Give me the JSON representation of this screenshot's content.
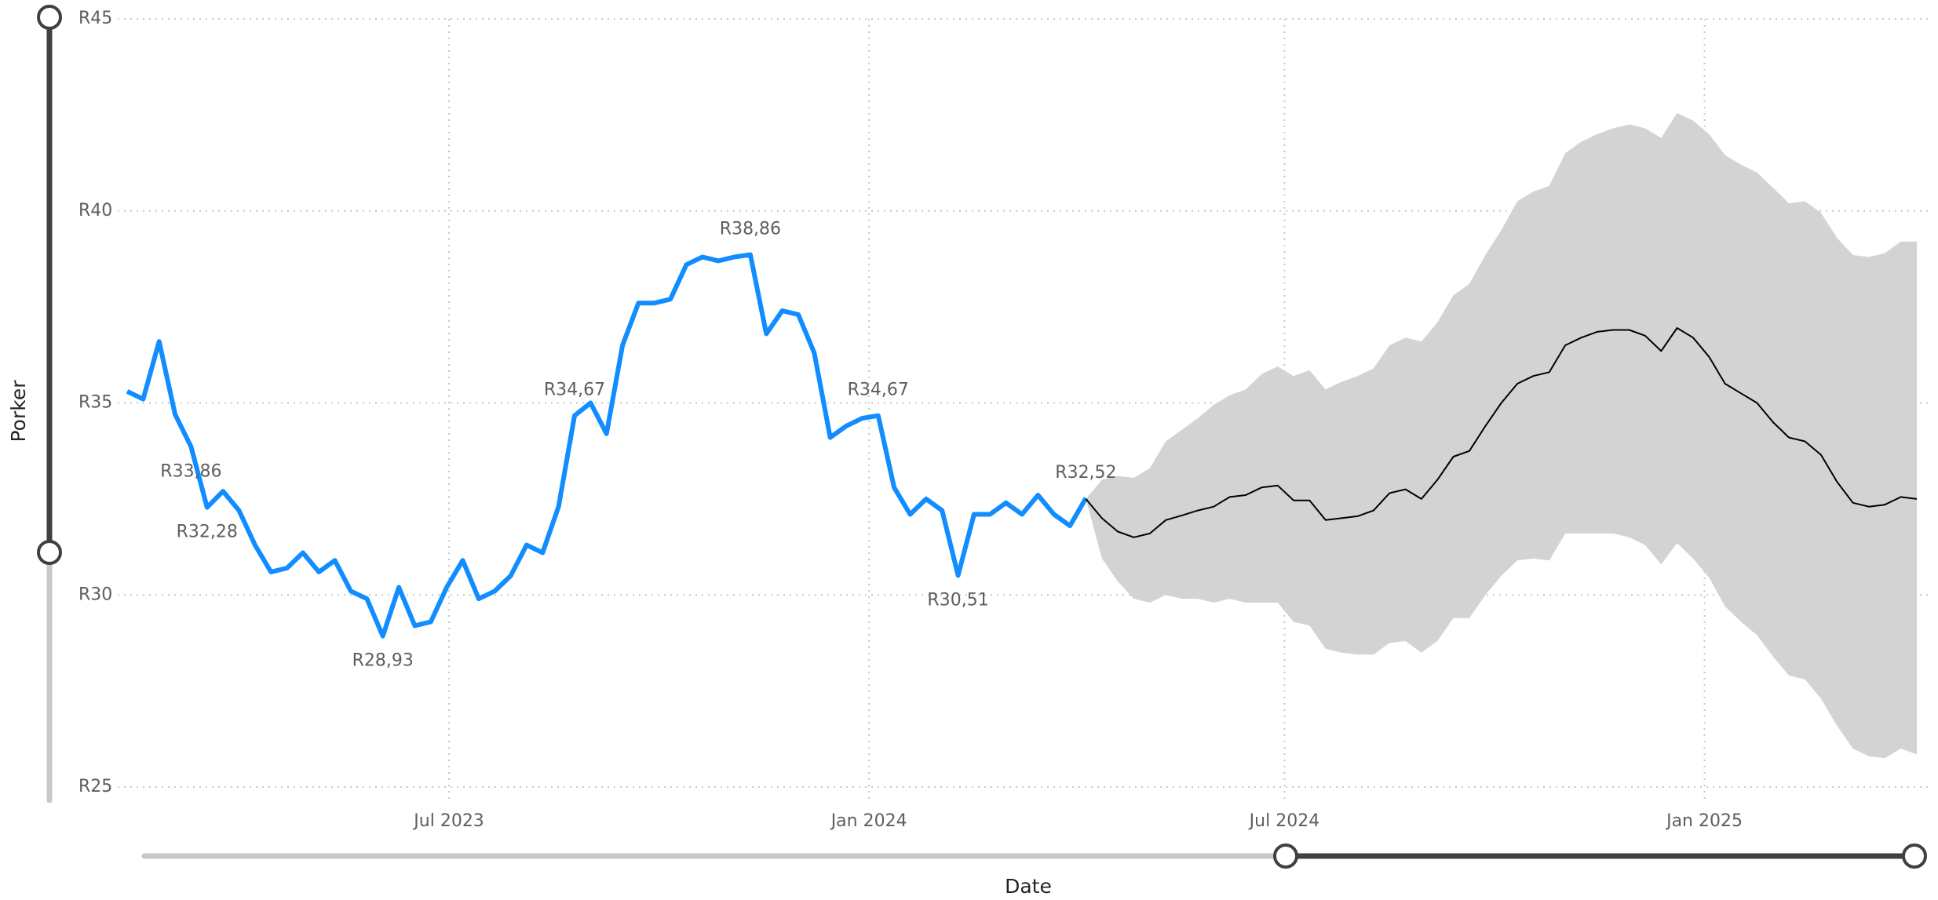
{
  "chart_data": {
    "type": "line",
    "x_label": "Date",
    "y_label": "Porker",
    "xlim": [
      "2023-02-10",
      "2025-04-04"
    ],
    "xticks": [
      {
        "value": "2023-07",
        "label": "Jul 2023"
      },
      {
        "value": "2024-01",
        "label": "Jan 2024"
      },
      {
        "value": "2024-07",
        "label": "Jul 2024"
      },
      {
        "value": "2025-01",
        "label": "Jan 2025"
      }
    ],
    "ylim": [
      25,
      45
    ],
    "yticks": [
      {
        "value": 25,
        "label": "R25"
      },
      {
        "value": 30,
        "label": "R30"
      },
      {
        "value": 35,
        "label": "R35"
      },
      {
        "value": 40,
        "label": "R40"
      },
      {
        "value": 45,
        "label": "R45"
      }
    ],
    "grid": true,
    "series": [
      {
        "color": "#118dff",
        "x": [
          "2023-02-10",
          "2023-02-17",
          "2023-02-24",
          "2023-03-03",
          "2023-03-10",
          "2023-03-17",
          "2023-03-24",
          "2023-03-31",
          "2023-04-07",
          "2023-04-14",
          "2023-04-21",
          "2023-04-28",
          "2023-05-05",
          "2023-05-12",
          "2023-05-19",
          "2023-05-26",
          "2023-06-02",
          "2023-06-09",
          "2023-06-16",
          "2023-06-23",
          "2023-06-30",
          "2023-07-07",
          "2023-07-14",
          "2023-07-21",
          "2023-07-28",
          "2023-08-04",
          "2023-08-11",
          "2023-08-18",
          "2023-08-25",
          "2023-09-01",
          "2023-09-08",
          "2023-09-15",
          "2023-09-22",
          "2023-09-29",
          "2023-10-06",
          "2023-10-13",
          "2023-10-20",
          "2023-10-27",
          "2023-11-03",
          "2023-11-10",
          "2023-11-17",
          "2023-11-24",
          "2023-12-01",
          "2023-12-08",
          "2023-12-15",
          "2023-12-22",
          "2023-12-29",
          "2024-01-05",
          "2024-01-12",
          "2024-01-19",
          "2024-01-26",
          "2024-02-02",
          "2024-02-09",
          "2024-02-16",
          "2024-02-23",
          "2024-03-01",
          "2024-03-08",
          "2024-03-15",
          "2024-03-22",
          "2024-03-29",
          "2024-04-05"
        ],
        "values": [
          35.3,
          35.1,
          36.6,
          34.7,
          33.86,
          32.28,
          32.7,
          32.2,
          31.3,
          30.6,
          30.7,
          31.1,
          30.6,
          30.9,
          30.1,
          29.9,
          28.93,
          30.2,
          29.2,
          29.3,
          30.2,
          30.9,
          29.9,
          30.1,
          30.5,
          31.3,
          31.1,
          32.3,
          34.67,
          35.0,
          34.2,
          36.5,
          37.6,
          37.6,
          37.7,
          38.6,
          38.8,
          38.7,
          38.8,
          38.86,
          36.8,
          37.4,
          37.3,
          36.3,
          34.1,
          34.4,
          34.6,
          34.67,
          32.8,
          32.1,
          32.5,
          32.2,
          30.51,
          32.1,
          32.1,
          32.4,
          32.1,
          32.6,
          32.1,
          31.8,
          32.52
        ],
        "value_labels": [
          null,
          null,
          null,
          null,
          "R33,86",
          "R32,28",
          null,
          null,
          null,
          null,
          null,
          null,
          null,
          null,
          null,
          null,
          "R28,93",
          null,
          null,
          null,
          null,
          null,
          null,
          null,
          null,
          null,
          null,
          null,
          "R34,67",
          null,
          null,
          null,
          null,
          null,
          null,
          null,
          null,
          null,
          null,
          "R38,86",
          null,
          null,
          null,
          null,
          null,
          null,
          null,
          "R34,67",
          null,
          null,
          null,
          null,
          "R30,51",
          null,
          null,
          null,
          null,
          null,
          null,
          null,
          "R32,52"
        ]
      },
      {
        "color": "#000000",
        "band_color": "#d3d3d3",
        "x": [
          "2024-04-05",
          "2024-04-12",
          "2024-04-19",
          "2024-04-26",
          "2024-05-03",
          "2024-05-10",
          "2024-05-17",
          "2024-05-24",
          "2024-05-31",
          "2024-06-07",
          "2024-06-14",
          "2024-06-21",
          "2024-06-28",
          "2024-07-05",
          "2024-07-12",
          "2024-07-19",
          "2024-07-26",
          "2024-08-02",
          "2024-08-09",
          "2024-08-16",
          "2024-08-23",
          "2024-08-30",
          "2024-09-06",
          "2024-09-13",
          "2024-09-20",
          "2024-09-27",
          "2024-10-04",
          "2024-10-11",
          "2024-10-18",
          "2024-10-25",
          "2024-11-01",
          "2024-11-08",
          "2024-11-15",
          "2024-11-22",
          "2024-11-29",
          "2024-12-06",
          "2024-12-13",
          "2024-12-20",
          "2024-12-27",
          "2025-01-03",
          "2025-01-10",
          "2025-01-17",
          "2025-01-24",
          "2025-01-31",
          "2025-02-07",
          "2025-02-14",
          "2025-02-21",
          "2025-02-28",
          "2025-03-07",
          "2025-03-14",
          "2025-03-21",
          "2025-03-28",
          "2025-04-04"
        ],
        "values": [
          32.5,
          32.0,
          31.65,
          31.5,
          31.6,
          31.95,
          32.07,
          32.2,
          32.3,
          32.55,
          32.6,
          32.8,
          32.85,
          32.46,
          32.46,
          31.95,
          32.0,
          32.05,
          32.2,
          32.65,
          32.75,
          32.5,
          33.0,
          33.6,
          33.75,
          34.4,
          35.0,
          35.5,
          35.7,
          35.8,
          36.5,
          36.7,
          36.85,
          36.9,
          36.9,
          36.75,
          36.35,
          36.95,
          36.7,
          36.2,
          35.5,
          35.25,
          35.0,
          34.5,
          34.1,
          34.0,
          33.65,
          32.95,
          32.4,
          32.3,
          32.35,
          32.55,
          32.5
        ],
        "upper": [
          32.5,
          33.0,
          33.1,
          33.05,
          33.3,
          34.0,
          34.3,
          34.6,
          34.95,
          35.2,
          35.35,
          35.75,
          35.95,
          35.7,
          35.85,
          35.35,
          35.55,
          35.7,
          35.9,
          36.5,
          36.7,
          36.6,
          37.1,
          37.8,
          38.1,
          38.85,
          39.5,
          40.25,
          40.5,
          40.65,
          41.5,
          41.8,
          42.0,
          42.15,
          42.25,
          42.15,
          41.9,
          42.55,
          42.35,
          42.0,
          41.45,
          41.2,
          41.0,
          40.6,
          40.2,
          40.25,
          39.95,
          39.3,
          38.85,
          38.8,
          38.9,
          39.2,
          39.2
        ],
        "lower": [
          32.5,
          30.95,
          30.35,
          29.9,
          29.8,
          30.0,
          29.9,
          29.9,
          29.8,
          29.9,
          29.8,
          29.8,
          29.8,
          29.3,
          29.2,
          28.6,
          28.5,
          28.45,
          28.45,
          28.75,
          28.8,
          28.5,
          28.8,
          29.4,
          29.4,
          30.0,
          30.5,
          30.9,
          30.95,
          30.9,
          31.6,
          31.6,
          31.6,
          31.6,
          31.5,
          31.3,
          30.8,
          31.35,
          30.95,
          30.45,
          29.7,
          29.3,
          28.95,
          28.4,
          27.9,
          27.8,
          27.3,
          26.6,
          26.0,
          25.8,
          25.75,
          26.0,
          25.85
        ]
      }
    ]
  }
}
